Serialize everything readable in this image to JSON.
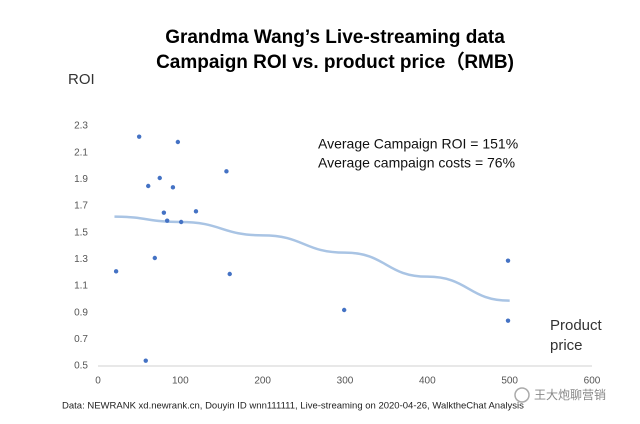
{
  "chart_data": {
    "type": "scatter",
    "title": [
      "Grandma Wang’s Live-streaming data",
      "Campaign ROI vs. product price（RMB)"
    ],
    "y_label": "ROI",
    "x_label": "Product price",
    "annotations": [
      "Average Campaign ROI = 151%",
      "Average campaign costs = 76%"
    ],
    "source": "Data: NEWRANK xd.newrank.cn, Douyin ID wnn111111, Live-streaming on 2020-04-26, WalktheChat Analysis",
    "watermark": "王大炮聊营销",
    "color": "#4472c4",
    "x": [
      50,
      97,
      75,
      61,
      91,
      156,
      80,
      119,
      84,
      101,
      22,
      69,
      160,
      299,
      498,
      498,
      58
    ],
    "values": [
      2.22,
      2.18,
      1.91,
      1.85,
      1.84,
      1.96,
      1.65,
      1.66,
      1.59,
      1.58,
      1.21,
      1.31,
      1.19,
      0.92,
      1.29,
      0.84,
      0.54
    ],
    "trendline": {
      "color": "#a9c4e4",
      "x": [
        20,
        100,
        200,
        300,
        400,
        500
      ],
      "values": [
        1.62,
        1.58,
        1.48,
        1.35,
        1.17,
        0.99
      ]
    },
    "xlim": [
      0,
      600
    ],
    "xticks": [
      0,
      100,
      200,
      300,
      400,
      500,
      600
    ],
    "ylim": [
      0.5,
      2.3
    ],
    "yticks": [
      0.5,
      0.7,
      0.9,
      1.1,
      1.3,
      1.5,
      1.7,
      1.9,
      2.1,
      2.3
    ],
    "grid": false
  }
}
